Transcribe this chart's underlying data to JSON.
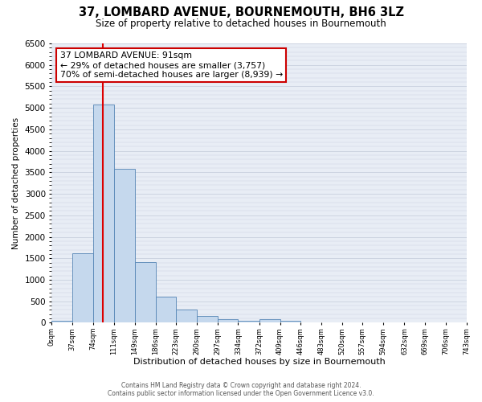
{
  "title": "37, LOMBARD AVENUE, BOURNEMOUTH, BH6 3LZ",
  "subtitle": "Size of property relative to detached houses in Bournemouth",
  "xlabel": "Distribution of detached houses by size in Bournemouth",
  "ylabel": "Number of detached properties",
  "bar_edges": [
    0,
    37,
    74,
    111,
    149,
    186,
    223,
    260,
    297,
    334,
    372,
    409,
    446,
    483,
    520,
    557,
    594,
    632,
    669,
    706,
    743
  ],
  "bar_heights": [
    50,
    1620,
    5080,
    3580,
    1420,
    610,
    300,
    150,
    90,
    50,
    80,
    50,
    0,
    0,
    0,
    0,
    0,
    0,
    0,
    0
  ],
  "bar_color": "#c5d8ed",
  "bar_edgecolor": "#5585b5",
  "property_line_x": 91,
  "property_line_color": "#dd0000",
  "annotation_title": "37 LOMBARD AVENUE: 91sqm",
  "annotation_line1": "← 29% of detached houses are smaller (3,757)",
  "annotation_line2": "70% of semi-detached houses are larger (8,939) →",
  "annotation_box_color": "#cc0000",
  "ylim": [
    0,
    6500
  ],
  "xtick_labels": [
    "0sqm",
    "37sqm",
    "74sqm",
    "111sqm",
    "149sqm",
    "186sqm",
    "223sqm",
    "260sqm",
    "297sqm",
    "334sqm",
    "372sqm",
    "409sqm",
    "446sqm",
    "483sqm",
    "520sqm",
    "557sqm",
    "594sqm",
    "632sqm",
    "669sqm",
    "706sqm",
    "743sqm"
  ],
  "footer1": "Contains HM Land Registry data © Crown copyright and database right 2024.",
  "footer2": "Contains public sector information licensed under the Open Government Licence v3.0.",
  "bg_color": "#ffffff",
  "plot_bg_color": "#e8edf5",
  "grid_color": "#c8d0de"
}
